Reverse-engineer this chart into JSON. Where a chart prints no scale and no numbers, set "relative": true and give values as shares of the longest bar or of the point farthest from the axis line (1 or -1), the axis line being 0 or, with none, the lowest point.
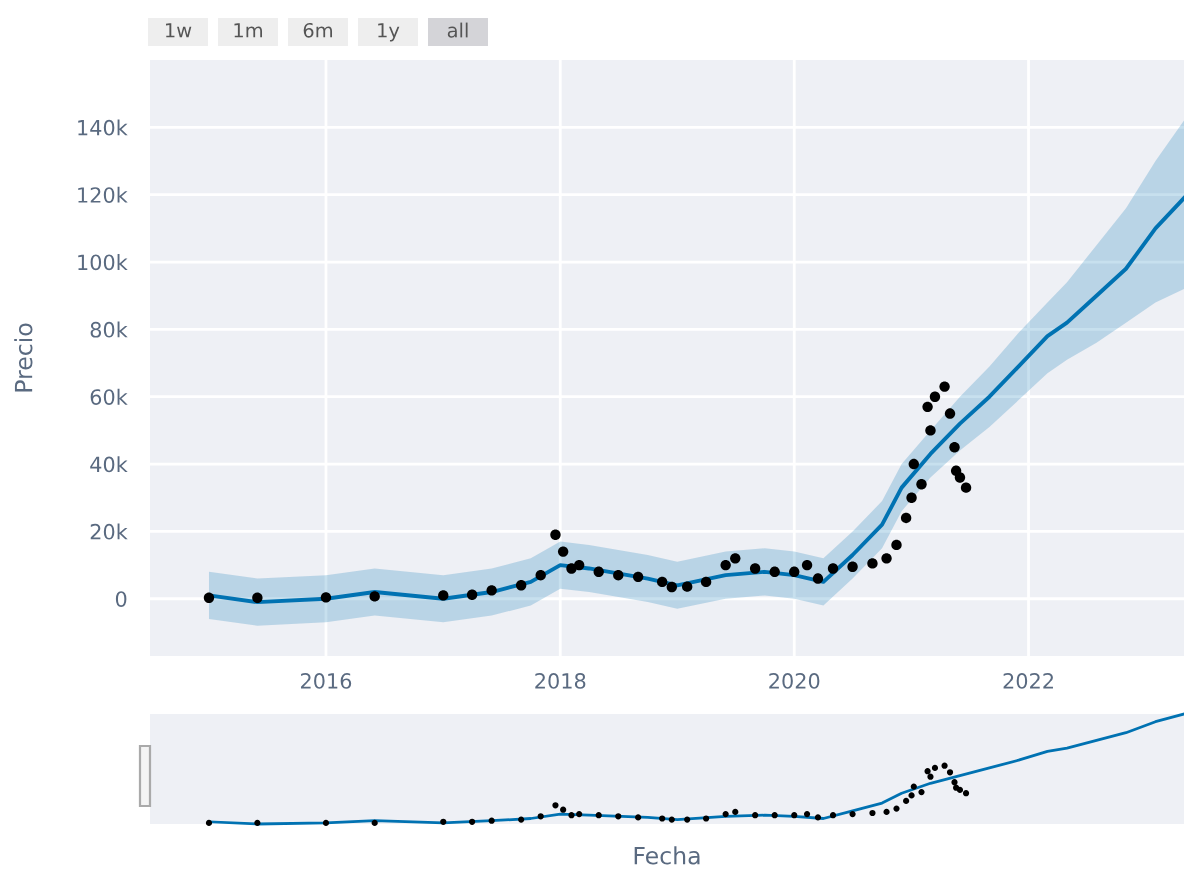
{
  "chart_data": [
    {
      "type": "line",
      "ylabel": "Precio",
      "annotations": [
        "1w",
        "1m",
        "6m",
        "1y",
        "all"
      ],
      "xlim": [
        "2014-07",
        "2023-05"
      ],
      "xticks": [
        "2016",
        "2018",
        "2020",
        "2022"
      ],
      "ylim": [
        -17000,
        160000
      ],
      "yticks": [
        0,
        {
          "value": 20000,
          "label": "20k"
        },
        {
          "value": 40000,
          "label": "40k"
        },
        {
          "value": 60000,
          "label": "60k"
        },
        {
          "value": 80000,
          "label": "80k"
        },
        {
          "value": 100000,
          "label": "100k"
        },
        {
          "value": 120000,
          "label": "120k"
        },
        {
          "value": 140000,
          "label": "140k"
        }
      ],
      "grid": true,
      "series": [
        {
          "color": "#0072b2",
          "marker": "none",
          "x": [
            "2015-01",
            "2015-06",
            "2016-01",
            "2016-06",
            "2017-01",
            "2017-06",
            "2017-10",
            "2018-01",
            "2018-04",
            "2018-10",
            "2019-01",
            "2019-06",
            "2019-10",
            "2020-01",
            "2020-04",
            "2020-07",
            "2020-10",
            "2020-12",
            "2021-03",
            "2021-06",
            "2021-09",
            "2021-12",
            "2022-03",
            "2022-05",
            "2022-08",
            "2022-11",
            "2023-02",
            "2023-05"
          ],
          "values": [
            1000,
            -1000,
            0,
            2000,
            0,
            2000,
            5000,
            10000,
            9000,
            6000,
            4000,
            7000,
            8000,
            7000,
            5000,
            13000,
            22000,
            33000,
            43000,
            52000,
            60000,
            69000,
            78000,
            82000,
            90000,
            98000,
            110000,
            119000
          ],
          "lower": [
            -6000,
            -8000,
            -7000,
            -5000,
            -7000,
            -5000,
            -2000,
            3000,
            2000,
            -1000,
            -3000,
            0,
            1000,
            0,
            -2000,
            6000,
            15000,
            26000,
            36000,
            44000,
            51000,
            59000,
            67000,
            71000,
            76000,
            82000,
            88000,
            92000
          ],
          "upper": [
            8000,
            6000,
            7000,
            9000,
            7000,
            9000,
            12000,
            17000,
            16000,
            13000,
            11000,
            14000,
            15000,
            14000,
            12000,
            20000,
            29000,
            40000,
            50000,
            60000,
            69000,
            79000,
            88000,
            94000,
            105000,
            116000,
            130000,
            142000
          ]
        },
        {
          "type": "scatter",
          "color": "#000000",
          "marker": "circle",
          "x": [
            "2015-01-01",
            "2015-06-01",
            "2016-01-01",
            "2016-06-01",
            "2017-01-01",
            "2017-04-01",
            "2017-06-01",
            "2017-09-01",
            "2017-11-01",
            "2017-12-17",
            "2018-01-10",
            "2018-02-05",
            "2018-03-01",
            "2018-05-01",
            "2018-07-01",
            "2018-09-01",
            "2018-11-15",
            "2018-12-15",
            "2019-02-01",
            "2019-04-01",
            "2019-06-01",
            "2019-07-01",
            "2019-09-01",
            "2019-11-01",
            "2020-01-01",
            "2020-02-10",
            "2020-03-15",
            "2020-05-01",
            "2020-07-01",
            "2020-09-01",
            "2020-10-15",
            "2020-11-15",
            "2020-12-15",
            "2021-01-01",
            "2021-01-08",
            "2021-02-01",
            "2021-02-20",
            "2021-03-01",
            "2021-03-15",
            "2021-04-14",
            "2021-05-01",
            "2021-05-15",
            "2021-05-20",
            "2021-06-01",
            "2021-06-20"
          ],
          "values": [
            300,
            300,
            400,
            700,
            1000,
            1200,
            2500,
            4000,
            7000,
            19000,
            14000,
            9000,
            10000,
            8000,
            7000,
            6500,
            5000,
            3500,
            3600,
            5000,
            10000,
            12000,
            9000,
            8000,
            8000,
            10000,
            6000,
            9000,
            9500,
            10500,
            12000,
            16000,
            24000,
            30000,
            40000,
            34000,
            57000,
            50000,
            60000,
            63000,
            55000,
            45000,
            38000,
            36000,
            33000
          ]
        }
      ]
    },
    {
      "type": "line",
      "xlabel": "Fecha",
      "tick_labels": false,
      "relative": true,
      "xlim": [
        "2014-07",
        "2023-05"
      ],
      "series": [
        {
          "color": "#0072b2",
          "marker": "none",
          "x": [
            "2015-01",
            "2015-06",
            "2016-01",
            "2016-06",
            "2017-01",
            "2017-06",
            "2017-10",
            "2018-01",
            "2018-04",
            "2018-10",
            "2019-01",
            "2019-06",
            "2019-10",
            "2020-01",
            "2020-04",
            "2020-07",
            "2020-10",
            "2020-12",
            "2021-03",
            "2021-06",
            "2021-09",
            "2021-12",
            "2022-03",
            "2022-05",
            "2022-08",
            "2022-11",
            "2023-02",
            "2023-05"
          ],
          "values": [
            0.02,
            0,
            0.01,
            0.03,
            0.01,
            0.03,
            0.05,
            0.09,
            0.08,
            0.06,
            0.04,
            0.07,
            0.08,
            0.07,
            0.05,
            0.12,
            0.19,
            0.28,
            0.37,
            0.44,
            0.51,
            0.58,
            0.66,
            0.69,
            0.76,
            0.83,
            0.93,
            1
          ]
        },
        {
          "type": "scatter",
          "color": "#000000",
          "marker": "circle",
          "x": [
            "2015-01-01",
            "2015-06-01",
            "2016-01-01",
            "2016-06-01",
            "2017-01-01",
            "2017-04-01",
            "2017-06-01",
            "2017-09-01",
            "2017-11-01",
            "2017-12-17",
            "2018-01-10",
            "2018-02-05",
            "2018-03-01",
            "2018-05-01",
            "2018-07-01",
            "2018-09-01",
            "2018-11-15",
            "2018-12-15",
            "2019-02-01",
            "2019-04-01",
            "2019-06-01",
            "2019-07-01",
            "2019-09-01",
            "2019-11-01",
            "2020-01-01",
            "2020-02-10",
            "2020-03-15",
            "2020-05-01",
            "2020-07-01",
            "2020-09-01",
            "2020-10-15",
            "2020-11-15",
            "2020-12-15",
            "2021-01-01",
            "2021-01-08",
            "2021-02-01",
            "2021-02-20",
            "2021-03-01",
            "2021-03-15",
            "2021-04-14",
            "2021-05-01",
            "2021-05-15",
            "2021-05-20",
            "2021-06-01",
            "2021-06-20"
          ],
          "values": [
            0.01,
            0.01,
            0.01,
            0.01,
            0.02,
            0.02,
            0.03,
            0.04,
            0.07,
            0.17,
            0.13,
            0.08,
            0.09,
            0.08,
            0.07,
            0.06,
            0.05,
            0.04,
            0.04,
            0.05,
            0.09,
            0.11,
            0.08,
            0.08,
            0.08,
            0.09,
            0.06,
            0.08,
            0.09,
            0.1,
            0.11,
            0.14,
            0.21,
            0.26,
            0.34,
            0.29,
            0.48,
            0.43,
            0.51,
            0.53,
            0.47,
            0.38,
            0.33,
            0.31,
            0.28
          ]
        }
      ]
    }
  ]
}
